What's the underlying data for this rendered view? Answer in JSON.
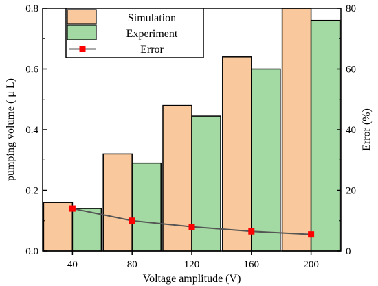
{
  "chart_data": {
    "type": "bar",
    "categories": [
      "40",
      "80",
      "120",
      "160",
      "200"
    ],
    "series": [
      {
        "name": "Simulation",
        "axis": "left",
        "kind": "bar",
        "color": "#f9c89c",
        "values": [
          0.16,
          0.32,
          0.48,
          0.64,
          0.8
        ]
      },
      {
        "name": "Experiment",
        "axis": "left",
        "kind": "bar",
        "color": "#a3d9a3",
        "values": [
          0.14,
          0.29,
          0.445,
          0.6,
          0.76
        ]
      },
      {
        "name": "Error",
        "axis": "right",
        "kind": "line",
        "color": "#555555",
        "marker_color": "#ff0000",
        "values": [
          14,
          10,
          8,
          6.5,
          5.5
        ]
      }
    ],
    "xlabel": "Voltage amplitude (V)",
    "ylabel": "pumping volume ( μ L)",
    "y2label": "Error (%)",
    "ylim": [
      0,
      0.8
    ],
    "y2lim": [
      0,
      80
    ],
    "yticks": [
      "0.0",
      "0.2",
      "0.4",
      "0.6",
      "0.8"
    ],
    "y2ticks": [
      "0",
      "20",
      "40",
      "60",
      "80"
    ],
    "grid": false,
    "legend_position": "top-left"
  }
}
